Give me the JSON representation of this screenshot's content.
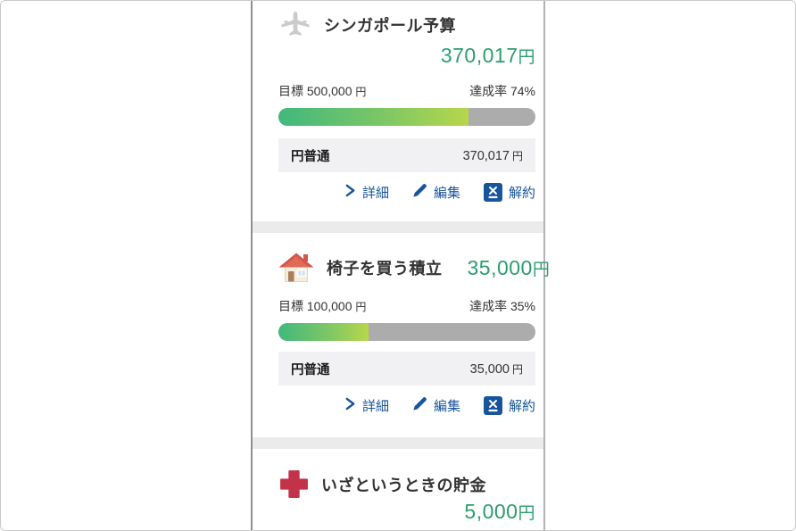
{
  "colors": {
    "amount_green": "#2b9c6e",
    "action_blue": "#17549b",
    "bar_gradient_start": "#41b87d",
    "bar_gradient_end": "#b7d64b",
    "bar_track": "#acacac",
    "account_row_bg": "#f1f1f4",
    "separator_gray": "#ebebeb"
  },
  "icons": {
    "card_1": "airplane-icon",
    "card_2": "house-icon",
    "card_3": "medical-cross-icon",
    "detail": "chevron-right-icon",
    "edit": "pencil-icon",
    "cancel": "close-box-icon"
  },
  "cards": [
    {
      "title": "シンガポール予算",
      "amount": "370,017",
      "amount_unit": "円",
      "goal_label": "目標",
      "goal_value": "500,000",
      "goal_unit": "円",
      "rate_label": "達成率",
      "rate_value": "74%",
      "progress_percent": 74,
      "account": {
        "name": "円普通",
        "value": "370,017",
        "unit": "円"
      },
      "actions": {
        "detail": "詳細",
        "edit": "編集",
        "cancel": "解約"
      }
    },
    {
      "title": "椅子を買う積立",
      "amount": "35,000",
      "amount_unit": "円",
      "goal_label": "目標",
      "goal_value": "100,000",
      "goal_unit": "円",
      "rate_label": "達成率",
      "rate_value": "35%",
      "progress_percent": 35,
      "account": {
        "name": "円普通",
        "value": "35,000",
        "unit": "円"
      },
      "actions": {
        "detail": "詳細",
        "edit": "編集",
        "cancel": "解約"
      }
    },
    {
      "title": "いざというときの貯金",
      "amount": "5,000",
      "amount_unit": "円"
    }
  ]
}
